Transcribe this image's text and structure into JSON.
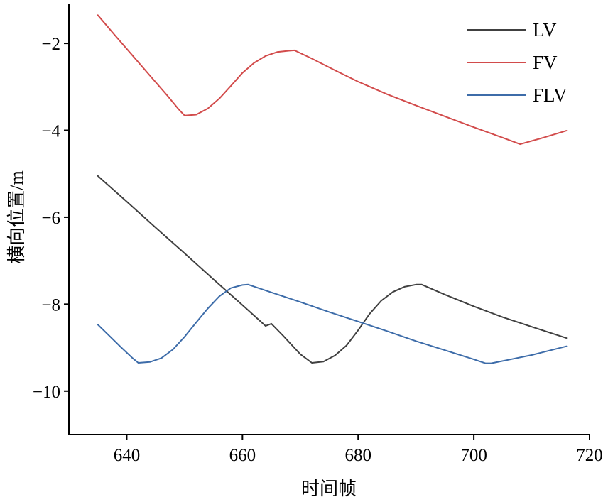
{
  "chart_data": {
    "type": "line",
    "xlabel": "时间帧",
    "ylabel": "横向位置/m",
    "xlim": [
      630,
      720
    ],
    "ylim": [
      -11,
      -1.1
    ],
    "xticks": [
      640,
      660,
      680,
      700,
      720
    ],
    "xtick_labels": [
      "640",
      "660",
      "680",
      "700",
      "720"
    ],
    "yticks": [
      -2,
      -4,
      -6,
      -8,
      -10
    ],
    "ytick_labels": [
      "−2",
      "−4",
      "−6",
      "−8",
      "−10"
    ],
    "grid": false,
    "legend": "top-right",
    "series": [
      {
        "name": "LV",
        "color": "#404040",
        "x": [
          635,
          640,
          645,
          650,
          655,
          660,
          664,
          665,
          667,
          670,
          672,
          674,
          676,
          678,
          680,
          682,
          684,
          686,
          688,
          690,
          691,
          695,
          700,
          705,
          710,
          716
        ],
        "y": [
          -5.05,
          -5.64,
          -6.24,
          -6.83,
          -7.43,
          -8.02,
          -8.5,
          -8.45,
          -8.72,
          -9.15,
          -9.35,
          -9.32,
          -9.18,
          -8.95,
          -8.6,
          -8.22,
          -7.92,
          -7.72,
          -7.6,
          -7.55,
          -7.55,
          -7.78,
          -8.05,
          -8.3,
          -8.52,
          -8.78
        ]
      },
      {
        "name": "FV",
        "color": "#d24b4b",
        "x": [
          635,
          638,
          641,
          644,
          647,
          649,
          650,
          652,
          654,
          656,
          658,
          660,
          662,
          664,
          666,
          668,
          669,
          672,
          676,
          680,
          685,
          690,
          695,
          700,
          705,
          708,
          712,
          716
        ],
        "y": [
          -1.35,
          -1.82,
          -2.28,
          -2.74,
          -3.2,
          -3.52,
          -3.66,
          -3.64,
          -3.5,
          -3.27,
          -2.98,
          -2.68,
          -2.45,
          -2.29,
          -2.2,
          -2.17,
          -2.16,
          -2.35,
          -2.62,
          -2.88,
          -3.17,
          -3.43,
          -3.68,
          -3.93,
          -4.17,
          -4.32,
          -4.17,
          -4.01
        ]
      },
      {
        "name": "FLV",
        "color": "#3d6ca9",
        "x": [
          635,
          637,
          639,
          641,
          642,
          644,
          646,
          648,
          650,
          652,
          654,
          656,
          658,
          660,
          661,
          665,
          670,
          675,
          680,
          685,
          690,
          695,
          700,
          702,
          703,
          706,
          710,
          716
        ],
        "y": [
          -8.47,
          -8.73,
          -8.99,
          -9.24,
          -9.35,
          -9.33,
          -9.24,
          -9.04,
          -8.75,
          -8.42,
          -8.1,
          -7.82,
          -7.63,
          -7.56,
          -7.55,
          -7.73,
          -7.95,
          -8.18,
          -8.4,
          -8.62,
          -8.85,
          -9.06,
          -9.27,
          -9.36,
          -9.36,
          -9.28,
          -9.17,
          -8.97
        ]
      }
    ]
  }
}
